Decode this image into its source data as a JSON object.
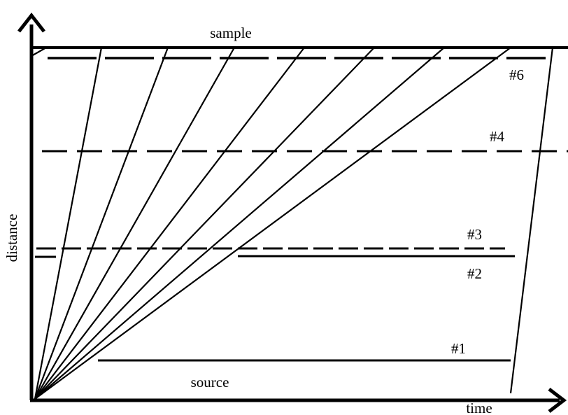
{
  "labels": {
    "top": "sample",
    "bottom": "source",
    "y_axis": "distance",
    "x_axis": "time"
  },
  "lines": [
    "#1",
    "#2",
    "#3",
    "#4",
    "#6"
  ]
}
